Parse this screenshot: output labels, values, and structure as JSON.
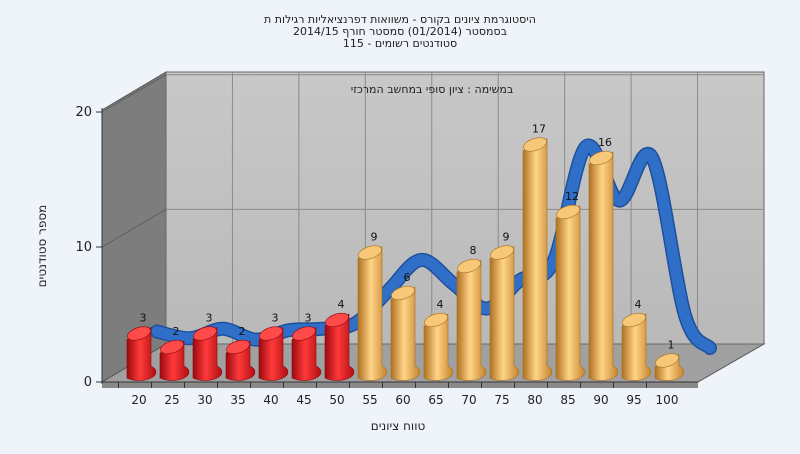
{
  "title_lines": [
    "היסטוגרמת ציונים בקורס - משוואות דפרנציאליות רגילות ת",
    "בסמסטר  (01/2014)  סמסטר חורף 2014/15",
    "115 - סטודנטים רשומים"
  ],
  "annotation": "במשימה : ציון סופי במחשב המרכזי",
  "colors": {
    "background": "#eef4fa",
    "back_wall": "#c4c4c4",
    "side_wall": "#7d7d7d",
    "floor": "#9c9c9c",
    "fail_bar": "#e8141c",
    "pass_bar": "#f0b24a",
    "curve": "#2f6fc8"
  },
  "chart_data": {
    "type": "bar",
    "title": "היסטוגרמת ציונים בקורס - משוואות דפרנציאליות רגילות ת / בסמסטר  (01/2014)  סמסטר חורף 2014/15 / 115 - סטודנטים רשומים",
    "xlabel": "טווח ציונים",
    "ylabel": "מספר סטודנטים",
    "ylim": [
      0,
      20
    ],
    "yticks": [
      "0",
      "10",
      "20"
    ],
    "categories": [
      "20",
      "25",
      "30",
      "35",
      "40",
      "45",
      "50",
      "55",
      "60",
      "65",
      "70",
      "75",
      "80",
      "85",
      "90",
      "95",
      "100"
    ],
    "values": [
      3,
      2,
      3,
      2,
      3,
      3,
      4,
      9,
      6,
      4,
      8,
      9,
      17,
      12,
      16,
      4,
      1
    ],
    "fail_threshold": 55,
    "grid": true,
    "curve": {
      "type": "line",
      "x": [
        20,
        25,
        30,
        35,
        40,
        45,
        50,
        55,
        60,
        65,
        70,
        75,
        80,
        85,
        90,
        95,
        100
      ],
      "values": [
        3.0,
        2.5,
        3.2,
        2.4,
        3.1,
        3.2,
        3.6,
        6.0,
        8.3,
        6.5,
        4.7,
        6.8,
        8.1,
        16.7,
        12.7,
        15.9,
        4.2
      ]
    }
  }
}
